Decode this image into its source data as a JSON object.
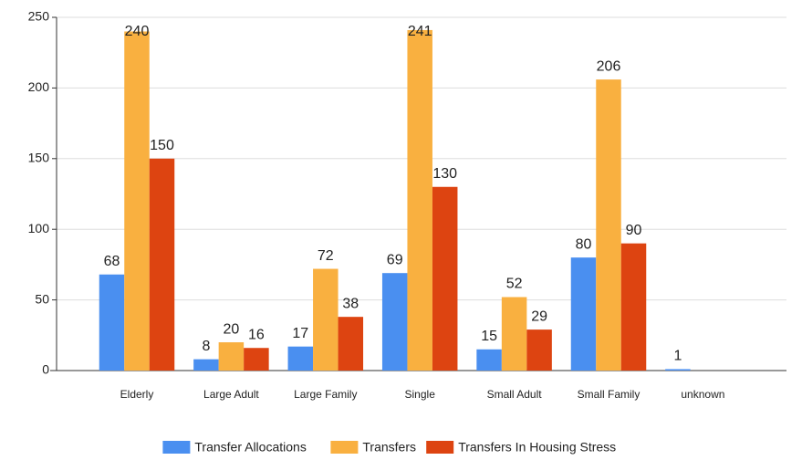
{
  "chart_data": {
    "type": "bar",
    "categories": [
      "Elderly",
      "Large Adult",
      "Large Family",
      "Single",
      "Small Adult",
      "Small Family",
      "unknown"
    ],
    "series": [
      {
        "name": "Transfer Allocations",
        "color": "#4a8ff0",
        "values": [
          68,
          8,
          17,
          69,
          15,
          80,
          1
        ]
      },
      {
        "name": "Transfers",
        "color": "#f9b040",
        "values": [
          240,
          20,
          72,
          241,
          52,
          206,
          null
        ]
      },
      {
        "name": "Transfers In Housing Stress",
        "color": "#dd4411",
        "values": [
          150,
          16,
          38,
          130,
          29,
          90,
          null
        ]
      }
    ],
    "ylim": [
      0,
      250
    ],
    "yticks": [
      0,
      50,
      100,
      150,
      200,
      250
    ],
    "grid": true,
    "legend": "bottom"
  }
}
